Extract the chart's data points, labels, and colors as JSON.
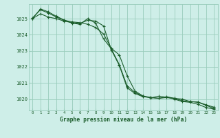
{
  "title": "Graphe pression niveau de la mer (hPa)",
  "background_color": "#ceeee8",
  "plot_bg_color": "#ceeee8",
  "grid_color": "#99ccbb",
  "line_color": "#1a5c2a",
  "xlim": [
    -0.5,
    23.5
  ],
  "ylim": [
    1019.3,
    1025.9
  ],
  "yticks": [
    1020,
    1021,
    1022,
    1023,
    1024,
    1025
  ],
  "xticks": [
    0,
    1,
    2,
    3,
    4,
    5,
    6,
    7,
    8,
    9,
    10,
    11,
    12,
    13,
    14,
    15,
    16,
    17,
    18,
    19,
    20,
    21,
    22,
    23
  ],
  "series1_x": [
    0,
    1,
    2,
    3,
    4,
    5,
    6,
    7,
    8,
    9,
    10,
    11,
    12,
    13,
    14,
    15,
    16,
    17,
    18,
    19,
    20,
    21,
    22,
    23
  ],
  "series1_y": [
    1025.0,
    1025.3,
    1025.1,
    1025.0,
    1024.85,
    1024.75,
    1024.7,
    1024.9,
    1024.85,
    1024.55,
    1023.05,
    1022.1,
    1020.7,
    1020.35,
    1020.15,
    1020.1,
    1020.05,
    1020.1,
    1020.05,
    1020.0,
    1019.85,
    1019.82,
    1019.65,
    1019.5
  ],
  "series2_x": [
    0,
    1,
    2,
    3,
    4,
    5,
    6,
    7,
    8,
    9,
    10,
    11,
    12,
    13,
    14,
    15,
    16,
    17,
    18,
    19,
    20,
    21,
    22,
    23
  ],
  "series2_y": [
    1025.05,
    1025.55,
    1025.35,
    1025.1,
    1024.9,
    1024.8,
    1024.75,
    1024.65,
    1024.45,
    1024.05,
    1023.15,
    1022.75,
    1021.45,
    1020.5,
    1020.2,
    1020.1,
    1020.05,
    1020.15,
    1020.05,
    1019.9,
    1019.85,
    1019.8,
    1019.62,
    1019.42
  ],
  "series3_x": [
    0,
    1,
    2,
    3,
    4,
    5,
    6,
    7,
    8,
    9,
    10,
    11,
    12,
    13,
    14,
    15,
    16,
    17,
    18,
    19,
    20,
    21,
    22,
    23
  ],
  "series3_y": [
    1025.0,
    1025.6,
    1025.42,
    1025.15,
    1024.92,
    1024.72,
    1024.65,
    1025.0,
    1024.72,
    1023.75,
    1023.12,
    1022.15,
    1020.82,
    1020.42,
    1020.18,
    1020.08,
    1020.18,
    1020.12,
    1020.0,
    1019.85,
    1019.8,
    1019.68,
    1019.48,
    1019.38
  ]
}
